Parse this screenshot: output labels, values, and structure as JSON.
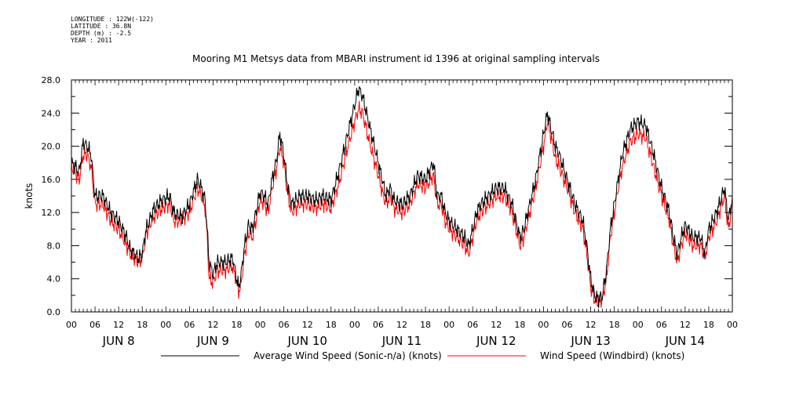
{
  "meta": {
    "longitude": "LONGITUDE : 122W(-122)",
    "latitude": "LATITUDE : 36.8N",
    "depth": "DEPTH (m) : -2.5",
    "year": "YEAR : 2011"
  },
  "chart_data": {
    "type": "line",
    "title": "Mooring M1 Metsys data from MBARI instrument id 1396 at original sampling intervals",
    "ylabel": "knots",
    "xlabel": "",
    "ylim": [
      0,
      28
    ],
    "yticks": [
      "0.0",
      "4.0",
      "8.0",
      "12.0",
      "16.0",
      "20.0",
      "24.0",
      "28.0"
    ],
    "xlim_hours": [
      0,
      168
    ],
    "xtick_labels": [
      "00",
      "06",
      "12",
      "18",
      "00",
      "06",
      "12",
      "18",
      "00",
      "06",
      "12",
      "18",
      "00",
      "06",
      "12",
      "18",
      "00",
      "06",
      "12",
      "18",
      "00",
      "06",
      "12",
      "18",
      "00",
      "06",
      "12",
      "18",
      "00"
    ],
    "day_labels": [
      "JUN 8",
      "JUN 9",
      "JUN 10",
      "JUN 11",
      "JUN 12",
      "JUN 13",
      "JUN 14"
    ],
    "grid": false,
    "legend_position": "bottom",
    "series": [
      {
        "name": "Average Wind Speed (Sonic-n/a) (knots)",
        "color": "#000000",
        "points": [
          [
            0,
            18
          ],
          [
            2,
            17
          ],
          [
            3,
            20.5
          ],
          [
            4,
            20
          ],
          [
            5,
            19
          ],
          [
            6,
            14
          ],
          [
            8,
            14
          ],
          [
            10,
            12
          ],
          [
            12,
            11
          ],
          [
            14,
            9
          ],
          [
            15,
            7.5
          ],
          [
            17,
            6.5
          ],
          [
            18,
            7
          ],
          [
            19,
            10
          ],
          [
            21,
            12.5
          ],
          [
            23,
            13.5
          ],
          [
            25,
            14
          ],
          [
            26,
            12
          ],
          [
            28,
            11.5
          ],
          [
            30,
            13
          ],
          [
            32,
            16
          ],
          [
            33,
            15
          ],
          [
            34,
            13.5
          ],
          [
            34.5,
            10
          ],
          [
            35,
            6
          ],
          [
            36,
            4.5
          ],
          [
            37,
            6
          ],
          [
            39,
            6
          ],
          [
            41,
            6.5
          ],
          [
            42,
            4
          ],
          [
            42.5,
            3
          ],
          [
            43,
            4
          ],
          [
            44,
            8
          ],
          [
            45,
            10.5
          ],
          [
            46,
            10
          ],
          [
            48,
            14.5
          ],
          [
            49,
            14
          ],
          [
            50,
            13
          ],
          [
            51,
            16
          ],
          [
            52,
            18
          ],
          [
            53,
            21.5
          ],
          [
            54,
            19
          ],
          [
            55,
            15
          ],
          [
            56,
            13
          ],
          [
            58,
            14
          ],
          [
            60,
            14
          ],
          [
            62,
            13.5
          ],
          [
            64,
            14
          ],
          [
            66,
            13.5
          ],
          [
            68,
            17
          ],
          [
            70,
            21
          ],
          [
            72,
            25
          ],
          [
            73,
            27
          ],
          [
            74,
            26
          ],
          [
            75,
            24
          ],
          [
            76,
            22
          ],
          [
            78,
            18
          ],
          [
            79,
            16
          ],
          [
            80,
            14
          ],
          [
            81,
            15
          ],
          [
            82,
            13.5
          ],
          [
            84,
            13
          ],
          [
            86,
            14
          ],
          [
            88,
            16.5
          ],
          [
            90,
            16
          ],
          [
            92,
            18
          ],
          [
            93,
            14
          ],
          [
            94,
            14
          ],
          [
            95,
            12
          ],
          [
            96,
            11
          ],
          [
            98,
            10
          ],
          [
            100,
            9
          ],
          [
            101,
            8
          ],
          [
            102,
            10
          ],
          [
            103,
            12
          ],
          [
            104,
            13
          ],
          [
            106,
            14
          ],
          [
            108,
            15
          ],
          [
            110,
            15
          ],
          [
            112,
            13
          ],
          [
            113,
            11
          ],
          [
            114,
            9
          ],
          [
            115,
            10
          ],
          [
            116,
            12
          ],
          [
            118,
            16
          ],
          [
            120,
            21.5
          ],
          [
            121,
            24
          ],
          [
            122,
            22
          ],
          [
            123,
            20
          ],
          [
            124,
            19
          ],
          [
            126,
            16
          ],
          [
            128,
            13
          ],
          [
            130,
            11
          ],
          [
            131,
            8
          ],
          [
            132,
            4
          ],
          [
            133,
            2
          ],
          [
            134,
            1.5
          ],
          [
            135,
            2
          ],
          [
            136,
            5
          ],
          [
            137,
            10
          ],
          [
            138,
            13
          ],
          [
            139,
            16
          ],
          [
            140,
            19
          ],
          [
            142,
            22
          ],
          [
            144,
            23
          ],
          [
            146,
            22.5
          ],
          [
            148,
            19
          ],
          [
            150,
            15
          ],
          [
            152,
            12
          ],
          [
            153,
            9
          ],
          [
            154,
            7
          ],
          [
            155,
            9
          ],
          [
            156,
            10.5
          ],
          [
            158,
            9
          ],
          [
            160,
            9
          ],
          [
            161,
            7
          ],
          [
            162,
            10
          ],
          [
            164,
            12
          ],
          [
            166,
            15
          ],
          [
            167,
            11
          ],
          [
            168,
            14
          ]
        ]
      },
      {
        "name": "Wind Speed (Windbird) (knots)",
        "color": "#ff0000",
        "points": [
          [
            0,
            17.5
          ],
          [
            2,
            16
          ],
          [
            3,
            19
          ],
          [
            4,
            19
          ],
          [
            5,
            17.5
          ],
          [
            6,
            13
          ],
          [
            8,
            13
          ],
          [
            10,
            11
          ],
          [
            12,
            10
          ],
          [
            14,
            8
          ],
          [
            15,
            7
          ],
          [
            17,
            6
          ],
          [
            18,
            6.5
          ],
          [
            19,
            9.5
          ],
          [
            21,
            11.5
          ],
          [
            23,
            12.5
          ],
          [
            25,
            13
          ],
          [
            26,
            11
          ],
          [
            28,
            11
          ],
          [
            30,
            12
          ],
          [
            32,
            15
          ],
          [
            33,
            14
          ],
          [
            34,
            12.5
          ],
          [
            34.5,
            9
          ],
          [
            35,
            4
          ],
          [
            36,
            3.5
          ],
          [
            37,
            5
          ],
          [
            39,
            5
          ],
          [
            41,
            5.5
          ],
          [
            42,
            3.5
          ],
          [
            42.5,
            2.5
          ],
          [
            43,
            3
          ],
          [
            44,
            7
          ],
          [
            45,
            9.5
          ],
          [
            46,
            9
          ],
          [
            48,
            13.5
          ],
          [
            49,
            13
          ],
          [
            50,
            12
          ],
          [
            51,
            15
          ],
          [
            52,
            17
          ],
          [
            53,
            20
          ],
          [
            54,
            18
          ],
          [
            55,
            14
          ],
          [
            56,
            12
          ],
          [
            58,
            13
          ],
          [
            60,
            13
          ],
          [
            62,
            12.5
          ],
          [
            64,
            13
          ],
          [
            66,
            12.5
          ],
          [
            68,
            15.5
          ],
          [
            70,
            19.5
          ],
          [
            72,
            23
          ],
          [
            73,
            24.5
          ],
          [
            74,
            24
          ],
          [
            75,
            22
          ],
          [
            76,
            20
          ],
          [
            78,
            16.5
          ],
          [
            79,
            14.5
          ],
          [
            80,
            13
          ],
          [
            81,
            14
          ],
          [
            82,
            12.5
          ],
          [
            84,
            12
          ],
          [
            86,
            13
          ],
          [
            88,
            15.5
          ],
          [
            90,
            15
          ],
          [
            92,
            16.5
          ],
          [
            93,
            13
          ],
          [
            94,
            13
          ],
          [
            95,
            11
          ],
          [
            96,
            10
          ],
          [
            98,
            9
          ],
          [
            100,
            8
          ],
          [
            101,
            7
          ],
          [
            102,
            9
          ],
          [
            103,
            11
          ],
          [
            104,
            12
          ],
          [
            106,
            13
          ],
          [
            108,
            14
          ],
          [
            110,
            14
          ],
          [
            112,
            12
          ],
          [
            113,
            10
          ],
          [
            114,
            8
          ],
          [
            115,
            9
          ],
          [
            116,
            11
          ],
          [
            118,
            15
          ],
          [
            120,
            20
          ],
          [
            121,
            23
          ],
          [
            122,
            21
          ],
          [
            123,
            18.5
          ],
          [
            124,
            17.5
          ],
          [
            126,
            15
          ],
          [
            128,
            12
          ],
          [
            130,
            10
          ],
          [
            131,
            7
          ],
          [
            132,
            3
          ],
          [
            133,
            1.5
          ],
          [
            134,
            1
          ],
          [
            135,
            1.5
          ],
          [
            136,
            4
          ],
          [
            137,
            9
          ],
          [
            138,
            12
          ],
          [
            139,
            15
          ],
          [
            140,
            17.5
          ],
          [
            142,
            20.5
          ],
          [
            144,
            21.5
          ],
          [
            146,
            21
          ],
          [
            148,
            17.5
          ],
          [
            150,
            14
          ],
          [
            152,
            11
          ],
          [
            153,
            8
          ],
          [
            154,
            6
          ],
          [
            155,
            8
          ],
          [
            156,
            9.5
          ],
          [
            158,
            8
          ],
          [
            160,
            8
          ],
          [
            161,
            6.5
          ],
          [
            162,
            9
          ],
          [
            164,
            11
          ],
          [
            166,
            14
          ],
          [
            167,
            10
          ],
          [
            168,
            13
          ]
        ]
      }
    ]
  },
  "legend": {
    "item1": "Average Wind Speed (Sonic-n/a) (knots)",
    "item2": "Wind Speed (Windbird) (knots)"
  }
}
